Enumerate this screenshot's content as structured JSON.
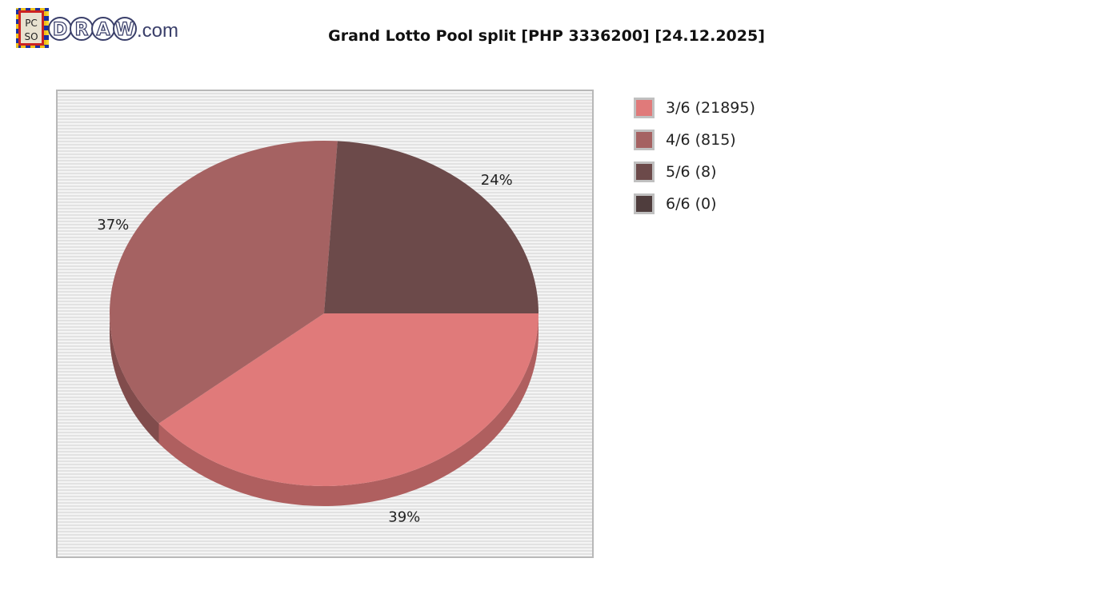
{
  "logo": {
    "text": "PCSO DRAW.com",
    "badge": "PCSO",
    "wordmark": "DRAW",
    "suffix": ".com"
  },
  "chart_data": {
    "type": "pie",
    "title": "Grand Lotto Pool split [PHP 3336200] [24.12.2025]",
    "style": "3d",
    "slices": [
      {
        "label": "3/6 (21895)",
        "category": "3/6",
        "count": 21895,
        "percent": 39,
        "percent_label": "39%",
        "color": "#e07a7a"
      },
      {
        "label": "4/6 (815)",
        "category": "4/6",
        "count": 815,
        "percent": 37,
        "percent_label": "37%",
        "color": "#a56262"
      },
      {
        "label": "5/6 (8)",
        "category": "5/6",
        "count": 8,
        "percent": 24,
        "percent_label": "24%",
        "color": "#6c4a4a"
      },
      {
        "label": "6/6 (0)",
        "category": "6/6",
        "count": 0,
        "percent": 0,
        "percent_label": "",
        "color": "#4f3d3d"
      }
    ],
    "legend_position": "right",
    "background": "striped-gray"
  }
}
